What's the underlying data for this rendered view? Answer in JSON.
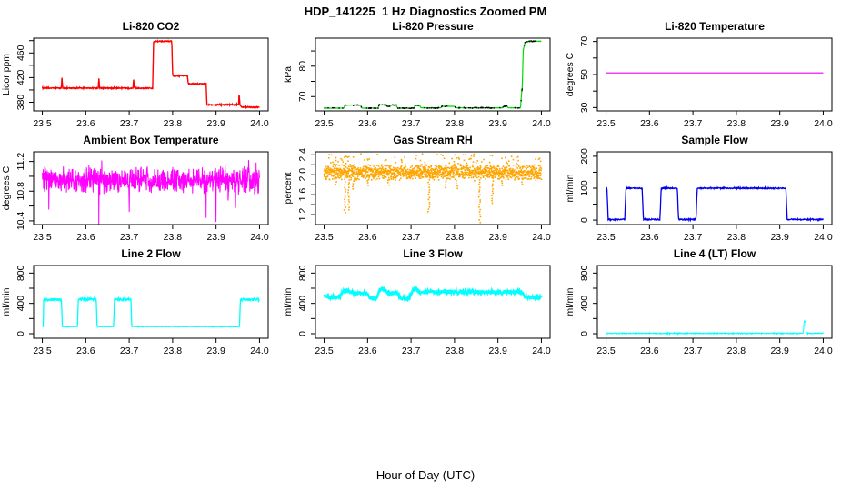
{
  "page": {
    "main_title": "HDP_141225  1 Hz Diagnostics Zoomed PM",
    "outer_xlabel": "Hour of Day (UTC)",
    "background": "#FFFFFF",
    "text_color": "#000000"
  },
  "axes_shared": {
    "xlim": [
      23.48,
      24.02
    ],
    "xticks": [
      23.5,
      23.6,
      23.7,
      23.8,
      23.9,
      24.0
    ],
    "grid": false,
    "legend": "none"
  },
  "chart_data": [
    {
      "type": "line",
      "render": "noisy-line",
      "title": "Li-820 CO2",
      "ylabel": "Licor ppm",
      "color": "#FF0000",
      "ylim": [
        366,
        484
      ],
      "yticks": [
        380,
        400,
        420,
        440,
        460,
        480
      ],
      "ytick_labels": [
        {
          "v": 380,
          "t": "380"
        },
        {
          "v": 420,
          "t": "420"
        },
        {
          "v": 460,
          "t": "460"
        }
      ],
      "noise": 1.2,
      "samples": 700,
      "stroke": 1.4,
      "keypoints": [
        [
          23.5,
          403
        ],
        [
          23.544,
          403
        ],
        [
          23.545,
          420
        ],
        [
          23.547,
          403
        ],
        [
          23.629,
          403
        ],
        [
          23.63,
          421
        ],
        [
          23.632,
          403
        ],
        [
          23.709,
          403
        ],
        [
          23.71,
          419
        ],
        [
          23.712,
          403
        ],
        [
          23.754,
          403
        ],
        [
          23.756,
          477
        ],
        [
          23.76,
          479
        ],
        [
          23.798,
          479
        ],
        [
          23.8,
          423
        ],
        [
          23.834,
          423
        ],
        [
          23.836,
          410
        ],
        [
          23.877,
          410
        ],
        [
          23.879,
          376
        ],
        [
          23.952,
          376
        ],
        [
          23.953,
          394
        ],
        [
          23.955,
          376
        ],
        [
          23.958,
          372
        ],
        [
          24,
          372
        ]
      ]
    },
    {
      "type": "line",
      "render": "noisy-line",
      "title": "Li-820 Pressure",
      "ylabel": "kPa",
      "color": "#00DD00",
      "ylim": [
        65.3,
        89.2
      ],
      "yticks": [
        70,
        75,
        80,
        85
      ],
      "ytick_labels": [
        {
          "v": 70,
          "t": "70"
        },
        {
          "v": 80,
          "t": "80"
        }
      ],
      "noise": 0.08,
      "samples": 600,
      "stroke": 1.2,
      "dots": {
        "color": "#000000",
        "count": 150,
        "jitter": 0.25,
        "size": 1.4
      },
      "keypoints": [
        [
          23.5,
          66.4
        ],
        [
          23.503,
          66.2
        ],
        [
          23.545,
          66.2
        ],
        [
          23.548,
          67.2
        ],
        [
          23.584,
          67.2
        ],
        [
          23.587,
          66.2
        ],
        [
          23.624,
          66.2
        ],
        [
          23.627,
          67.3
        ],
        [
          23.643,
          67.3
        ],
        [
          23.646,
          66.7
        ],
        [
          23.652,
          66.7
        ],
        [
          23.655,
          67.2
        ],
        [
          23.666,
          67.2
        ],
        [
          23.669,
          66.2
        ],
        [
          23.706,
          66.2
        ],
        [
          23.709,
          67
        ],
        [
          23.72,
          67
        ],
        [
          23.723,
          66.3
        ],
        [
          23.768,
          66.3
        ],
        [
          23.771,
          66.8
        ],
        [
          23.8,
          66.8
        ],
        [
          23.803,
          66.3
        ],
        [
          23.91,
          66.3
        ],
        [
          23.913,
          66.8
        ],
        [
          23.921,
          66.8
        ],
        [
          23.924,
          66.3
        ],
        [
          23.952,
          66.3
        ],
        [
          23.954,
          70.5
        ],
        [
          23.956,
          73
        ],
        [
          23.958,
          85
        ],
        [
          23.962,
          87.8
        ],
        [
          23.97,
          88.2
        ],
        [
          24,
          88.2
        ]
      ]
    },
    {
      "type": "line",
      "render": "line",
      "title": "Li-820 Temperature",
      "ylabel": "degrees C",
      "color": "#EE00EE",
      "ylim": [
        28,
        72
      ],
      "yticks": [
        30,
        40,
        50,
        60,
        70
      ],
      "ytick_labels": [
        {
          "v": 30,
          "t": "30"
        },
        {
          "v": 50,
          "t": "50"
        },
        {
          "v": 70,
          "t": "70"
        }
      ],
      "stroke": 1.2,
      "keypoints": [
        [
          23.5,
          51
        ],
        [
          24,
          51
        ]
      ]
    },
    {
      "type": "line",
      "render": "noisy-line",
      "title": "Ambient Box Temperature",
      "ylabel": "degrees C",
      "color": "#FF00FF",
      "ylim": [
        10.35,
        11.33
      ],
      "yticks": [
        10.4,
        10.6,
        10.8,
        11.0,
        11.2
      ],
      "ytick_labels": [
        {
          "v": 10.4,
          "t": "10.4"
        },
        {
          "v": 10.8,
          "t": "10.8"
        },
        {
          "v": 11.2,
          "t": "11.2"
        }
      ],
      "noise": 0.2,
      "samples": 900,
      "stroke": 1,
      "extremes": [
        [
          23.515,
          10.52
        ],
        [
          23.63,
          10.42
        ],
        [
          23.637,
          11.27
        ],
        [
          23.7,
          10.6
        ],
        [
          23.877,
          10.55
        ],
        [
          23.9,
          10.4
        ],
        [
          23.928,
          10.62
        ],
        [
          23.945,
          10.55
        ],
        [
          23.975,
          11.22
        ],
        [
          23.992,
          11.32
        ]
      ],
      "keypoints": [
        [
          23.5,
          10.95
        ],
        [
          24,
          10.95
        ]
      ]
    },
    {
      "type": "scatter",
      "render": "scatter",
      "title": "Gas Stream RH",
      "ylabel": "percent",
      "color": "#FFA500",
      "ylim": [
        1.0,
        2.46
      ],
      "yticks": [
        1.2,
        1.4,
        1.6,
        1.8,
        2.0,
        2.2,
        2.4
      ],
      "ytick_labels": [
        {
          "v": 1.2,
          "t": "1.2"
        },
        {
          "v": 1.6,
          "t": "1.6"
        },
        {
          "v": 2.0,
          "t": "2.0"
        },
        {
          "v": 2.4,
          "t": "2.4"
        }
      ],
      "noise": 0.17,
      "samples": 1500,
      "dot_size": 1.6,
      "up_outliers": {
        "prob": 0.05,
        "min": 2.22,
        "max": 2.42
      },
      "dips": [
        [
          23.527,
          1.8
        ],
        [
          23.548,
          1.25
        ],
        [
          23.556,
          1.3
        ],
        [
          23.567,
          1.72
        ],
        [
          23.6,
          1.78
        ],
        [
          23.648,
          1.8
        ],
        [
          23.741,
          1.25
        ],
        [
          23.78,
          1.75
        ],
        [
          23.805,
          1.72
        ],
        [
          23.858,
          1.05
        ],
        [
          23.888,
          1.42
        ],
        [
          23.91,
          1.78
        ],
        [
          23.955,
          1.8
        ]
      ],
      "dip_top": 1.92,
      "dip_step": 0.05,
      "keypoints": [
        [
          23.5,
          2.05
        ],
        [
          24,
          2.05
        ]
      ]
    },
    {
      "type": "line",
      "render": "noisy-line",
      "title": "Sample Flow",
      "ylabel": "ml/min",
      "color": "#0000EE",
      "ylim": [
        -14,
        214
      ],
      "yticks": [
        0,
        50,
        100,
        150,
        200
      ],
      "ytick_labels": [
        {
          "v": 0,
          "t": "0"
        },
        {
          "v": 100,
          "t": "100"
        },
        {
          "v": 200,
          "t": "200"
        }
      ],
      "noise": 2.5,
      "samples": 700,
      "stroke": 1.3,
      "keypoints": [
        [
          23.5,
          100
        ],
        [
          23.502,
          100
        ],
        [
          23.505,
          2
        ],
        [
          23.543,
          2
        ],
        [
          23.546,
          100
        ],
        [
          23.583,
          100
        ],
        [
          23.586,
          2
        ],
        [
          23.624,
          2
        ],
        [
          23.627,
          100
        ],
        [
          23.664,
          100
        ],
        [
          23.667,
          2
        ],
        [
          23.707,
          2
        ],
        [
          23.71,
          100
        ],
        [
          23.914,
          100
        ],
        [
          23.917,
          2
        ],
        [
          24,
          2
        ]
      ]
    },
    {
      "type": "line",
      "render": "noisy-line",
      "title": "Line 2 Flow",
      "ylabel": "ml/min",
      "color": "#00FFFF",
      "ylim": [
        -60,
        900
      ],
      "yticks": [
        0,
        200,
        400,
        600,
        800
      ],
      "ytick_labels": [
        {
          "v": 0,
          "t": "0"
        },
        {
          "v": 400,
          "t": "400"
        },
        {
          "v": 800,
          "t": "800"
        }
      ],
      "noise": 5,
      "noise_threshold": 300,
      "noise_hi": 22,
      "samples": 800,
      "stroke": 1.3,
      "keypoints": [
        [
          23.5,
          95
        ],
        [
          23.502,
          95
        ],
        [
          23.503,
          450
        ],
        [
          23.544,
          450
        ],
        [
          23.546,
          95
        ],
        [
          23.581,
          95
        ],
        [
          23.583,
          455
        ],
        [
          23.624,
          455
        ],
        [
          23.626,
          95
        ],
        [
          23.664,
          95
        ],
        [
          23.666,
          450
        ],
        [
          23.704,
          450
        ],
        [
          23.706,
          95
        ],
        [
          23.954,
          95
        ],
        [
          23.956,
          450
        ],
        [
          24,
          450
        ]
      ]
    },
    {
      "type": "line",
      "render": "noisy-line",
      "title": "Line 3 Flow",
      "ylabel": "ml/min",
      "color": "#00FFFF",
      "ylim": [
        -60,
        900
      ],
      "yticks": [
        0,
        200,
        400,
        600,
        800
      ],
      "ytick_labels": [
        {
          "v": 0,
          "t": "0"
        },
        {
          "v": 400,
          "t": "400"
        },
        {
          "v": 800,
          "t": "800"
        }
      ],
      "noise": 30,
      "samples": 800,
      "stroke": 2.2,
      "keypoints": [
        [
          23.5,
          500
        ],
        [
          23.51,
          480
        ],
        [
          23.535,
          480
        ],
        [
          23.545,
          560
        ],
        [
          23.558,
          560
        ],
        [
          23.565,
          535
        ],
        [
          23.598,
          535
        ],
        [
          23.605,
          470
        ],
        [
          23.622,
          470
        ],
        [
          23.628,
          590
        ],
        [
          23.638,
          590
        ],
        [
          23.645,
          540
        ],
        [
          23.668,
          540
        ],
        [
          23.675,
          465
        ],
        [
          23.695,
          465
        ],
        [
          23.705,
          590
        ],
        [
          23.712,
          590
        ],
        [
          23.718,
          550
        ],
        [
          23.955,
          550
        ],
        [
          23.962,
          480
        ],
        [
          23.995,
          480
        ],
        [
          24,
          500
        ]
      ]
    },
    {
      "type": "line",
      "render": "noisy-line",
      "title": "Line 4 (LT) Flow",
      "ylabel": "ml/min",
      "color": "#00FFFF",
      "ylim": [
        -60,
        900
      ],
      "yticks": [
        0,
        200,
        400,
        600,
        800
      ],
      "ytick_labels": [
        {
          "v": 0,
          "t": "0"
        },
        {
          "v": 400,
          "t": "400"
        },
        {
          "v": 800,
          "t": "800"
        }
      ],
      "noise": 9,
      "samples": 700,
      "stroke": 1,
      "keypoints": [
        [
          23.5,
          5
        ],
        [
          23.954,
          5
        ],
        [
          23.956,
          170
        ],
        [
          23.959,
          170
        ],
        [
          23.961,
          5
        ],
        [
          24,
          5
        ]
      ]
    }
  ]
}
